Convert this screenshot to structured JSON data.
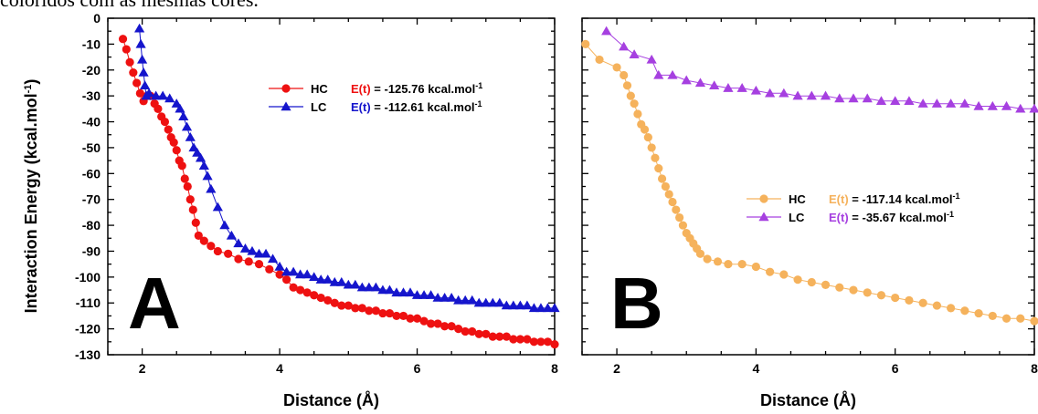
{
  "page": {
    "top_text": "coloridos com as mesmas cores."
  },
  "chart_data": [
    {
      "type": "line",
      "panel_label": "A",
      "xlabel": "Distance (Å)",
      "ylabel": "Interaction Energy (kcal.mol",
      "ylabel_sup": "-1",
      "ylabel_close": ")",
      "xlim": [
        1.5,
        8
      ],
      "ylim": [
        -130,
        0
      ],
      "xticks": [
        2,
        4,
        6,
        8
      ],
      "yticks": [
        0,
        -10,
        -20,
        -30,
        -40,
        -50,
        -60,
        -70,
        -80,
        -90,
        -100,
        -110,
        -120,
        -130
      ],
      "legend_position": "top-right",
      "series": [
        {
          "name": "HC",
          "marker": "circle",
          "color": "#ee1111",
          "energy_prefix": "E(t)",
          "energy_value": "= -125.76 kcal.mol",
          "energy_sup": "-1",
          "x": [
            1.72,
            1.77,
            1.82,
            1.87,
            1.92,
            1.97,
            2.02,
            2.07,
            2.12,
            2.18,
            2.23,
            2.28,
            2.33,
            2.38,
            2.42,
            2.46,
            2.5,
            2.54,
            2.58,
            2.62,
            2.66,
            2.7,
            2.74,
            2.78,
            2.82,
            2.9,
            3.0,
            3.1,
            3.25,
            3.4,
            3.55,
            3.7,
            3.85,
            4.0,
            4.1,
            4.2,
            4.3,
            4.4,
            4.5,
            4.6,
            4.7,
            4.8,
            4.9,
            5.0,
            5.1,
            5.2,
            5.3,
            5.4,
            5.5,
            5.6,
            5.7,
            5.8,
            5.9,
            6.0,
            6.1,
            6.2,
            6.3,
            6.4,
            6.5,
            6.6,
            6.7,
            6.8,
            6.9,
            7.0,
            7.1,
            7.2,
            7.3,
            7.4,
            7.5,
            7.6,
            7.7,
            7.8,
            7.9,
            8.0
          ],
          "y": [
            -8,
            -12,
            -17,
            -21,
            -25,
            -29,
            -32,
            -30,
            -30,
            -33,
            -35,
            -38,
            -40,
            -43,
            -46,
            -48,
            -51,
            -55,
            -57,
            -62,
            -65,
            -70,
            -74,
            -79,
            -84,
            -86,
            -88,
            -90,
            -91,
            -93,
            -94,
            -95,
            -97,
            -99,
            -101,
            -104,
            -105,
            -106,
            -107,
            -108,
            -109,
            -110,
            -111,
            -111,
            -112,
            -112,
            -113,
            -113,
            -114,
            -114,
            -115,
            -115,
            -116,
            -116,
            -117,
            -118,
            -118,
            -119,
            -119,
            -120,
            -121,
            -121,
            -122,
            -122,
            -123,
            -123,
            -123,
            -124,
            -124,
            -124,
            -125,
            -125,
            -125,
            -126
          ]
        },
        {
          "name": "LC",
          "marker": "triangle",
          "color": "#1515cc",
          "energy_prefix": "E(t)",
          "energy_value": "= -112.61 kcal.mol",
          "energy_sup": "-1",
          "x": [
            1.96,
            1.98,
            2.0,
            2.02,
            2.04,
            2.06,
            2.1,
            2.2,
            2.3,
            2.4,
            2.5,
            2.55,
            2.6,
            2.65,
            2.7,
            2.75,
            2.8,
            2.85,
            2.9,
            2.95,
            3.0,
            3.1,
            3.2,
            3.3,
            3.4,
            3.5,
            3.6,
            3.7,
            3.8,
            3.9,
            4.0,
            4.1,
            4.2,
            4.3,
            4.4,
            4.5,
            4.6,
            4.7,
            4.8,
            4.9,
            5.0,
            5.1,
            5.2,
            5.3,
            5.4,
            5.5,
            5.6,
            5.7,
            5.8,
            5.9,
            6.0,
            6.1,
            6.2,
            6.3,
            6.4,
            6.5,
            6.6,
            6.7,
            6.8,
            6.9,
            7.0,
            7.1,
            7.2,
            7.3,
            7.4,
            7.5,
            7.6,
            7.7,
            7.8,
            7.9,
            8.0
          ],
          "y": [
            -4,
            -10,
            -16,
            -21,
            -26,
            -30,
            -29,
            -30,
            -30,
            -31,
            -33,
            -35,
            -38,
            -42,
            -46,
            -50,
            -52,
            -54,
            -57,
            -61,
            -66,
            -73,
            -80,
            -84,
            -87,
            -89,
            -90,
            -91,
            -91,
            -93,
            -96,
            -98,
            -98,
            -99,
            -99,
            -100,
            -101,
            -101,
            -102,
            -102,
            -103,
            -103,
            -104,
            -104,
            -104,
            -105,
            -105,
            -106,
            -106,
            -106,
            -107,
            -107,
            -107,
            -108,
            -108,
            -108,
            -109,
            -109,
            -109,
            -110,
            -110,
            -110,
            -110,
            -111,
            -111,
            -111,
            -111,
            -112,
            -112,
            -112,
            -112
          ]
        }
      ]
    },
    {
      "type": "line",
      "panel_label": "B",
      "xlabel": "Distance (Å)",
      "xlim": [
        1.5,
        8
      ],
      "ylim": [
        -130,
        0
      ],
      "xticks": [
        2,
        4,
        6,
        8
      ],
      "legend_position": "right",
      "series": [
        {
          "name": "HC",
          "marker": "circle",
          "color": "#f5b25c",
          "energy_prefix": "E(t)",
          "energy_value": "= -117.14 kcal.mol",
          "energy_sup": "-1",
          "x": [
            1.55,
            1.75,
            2.0,
            2.1,
            2.15,
            2.2,
            2.25,
            2.3,
            2.35,
            2.4,
            2.45,
            2.5,
            2.55,
            2.6,
            2.65,
            2.7,
            2.75,
            2.8,
            2.85,
            2.9,
            2.95,
            3.0,
            3.05,
            3.1,
            3.15,
            3.2,
            3.3,
            3.45,
            3.6,
            3.8,
            4.0,
            4.2,
            4.4,
            4.6,
            4.8,
            5.0,
            5.2,
            5.4,
            5.6,
            5.8,
            6.0,
            6.2,
            6.4,
            6.6,
            6.8,
            7.0,
            7.2,
            7.4,
            7.6,
            7.8,
            8.0
          ],
          "y": [
            -10,
            -16,
            -19,
            -22,
            -26,
            -30,
            -33,
            -37,
            -41,
            -43,
            -46,
            -50,
            -54,
            -58,
            -62,
            -65,
            -68,
            -71,
            -74,
            -77,
            -80,
            -83,
            -85,
            -87,
            -89,
            -91,
            -93,
            -94,
            -95,
            -95,
            -96,
            -98,
            -99,
            -101,
            -102,
            -103,
            -104,
            -105,
            -106,
            -107,
            -108,
            -109,
            -110,
            -111,
            -112,
            -113,
            -114,
            -115,
            -116,
            -116,
            -117
          ]
        },
        {
          "name": "LC",
          "marker": "triangle",
          "color": "#a640e0",
          "energy_prefix": "E(t)",
          "energy_value": "=   -35.67 kcal.mol",
          "energy_sup": "-1",
          "x": [
            1.85,
            2.1,
            2.25,
            2.5,
            2.6,
            2.8,
            3.0,
            3.2,
            3.4,
            3.6,
            3.8,
            4.0,
            4.2,
            4.4,
            4.6,
            4.8,
            5.0,
            5.2,
            5.4,
            5.6,
            5.8,
            6.0,
            6.2,
            6.4,
            6.6,
            6.8,
            7.0,
            7.2,
            7.4,
            7.6,
            7.8,
            8.0
          ],
          "y": [
            -5,
            -11,
            -14,
            -16,
            -22,
            -22,
            -24,
            -25,
            -26,
            -27,
            -27,
            -28,
            -29,
            -29,
            -30,
            -30,
            -30,
            -31,
            -31,
            -31,
            -32,
            -32,
            -32,
            -33,
            -33,
            -33,
            -33,
            -34,
            -34,
            -34,
            -35,
            -35
          ]
        }
      ]
    }
  ]
}
